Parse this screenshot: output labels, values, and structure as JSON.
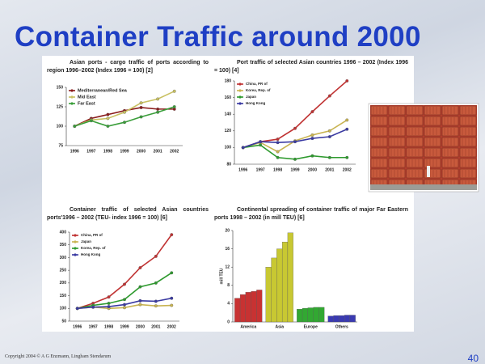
{
  "slide_title": "Container Traffic around 2000",
  "footer": "Copyright 2004 © A G Enzmann, Lingham Stendarum",
  "page_number": "40",
  "chart_data": [
    {
      "type": "line",
      "title": "Asian ports - cargo traffic of ports according to region 1996–2002 (Index 1996 = 100) [2]",
      "categories": [
        "1996",
        "1997",
        "1998",
        "1999",
        "2000",
        "2001",
        "2002"
      ],
      "ylim": [
        75,
        150
      ],
      "yticks": [
        75,
        100,
        125,
        150
      ],
      "grid": false,
      "legend": "upper left",
      "series": [
        {
          "name": "Mediterranean/Red Sea",
          "color": "#8b1c1c",
          "values": [
            100,
            110,
            115,
            120,
            124,
            122,
            122
          ]
        },
        {
          "name": "Mid East",
          "color": "#c9c162",
          "values": [
            100,
            108,
            110,
            118,
            130,
            135,
            145
          ]
        },
        {
          "name": "Far East",
          "color": "#3a9e3a",
          "values": [
            100,
            107,
            100,
            105,
            112,
            118,
            125
          ]
        }
      ]
    },
    {
      "type": "line",
      "title": "Port traffic of selected Asian countries 1996 – 2002 (Index 1996 = 100) [4]",
      "categories": [
        "1996",
        "1997",
        "1998",
        "1999",
        "2000",
        "2001",
        "2002"
      ],
      "ylim": [
        80,
        180
      ],
      "yticks": [
        80,
        100,
        120,
        140,
        160,
        180
      ],
      "grid": false,
      "legend": "upper left",
      "series": [
        {
          "name": "China, PR of",
          "color": "#c03232",
          "values": [
            100,
            107,
            110,
            123,
            143,
            162,
            180
          ]
        },
        {
          "name": "Korea, Rep. of",
          "color": "#c9b452",
          "values": [
            100,
            106,
            95,
            108,
            115,
            120,
            133
          ]
        },
        {
          "name": "Japan",
          "color": "#2e9a2e",
          "values": [
            100,
            103,
            88,
            86,
            90,
            88,
            88
          ]
        },
        {
          "name": "Hong Kong",
          "color": "#3a3aa2",
          "values": [
            100,
            107,
            106,
            107,
            111,
            113,
            122
          ]
        }
      ]
    },
    {
      "type": "line",
      "title": "Container traffic of selected Asian countries ports'1996 – 2002 (TEU- index 1996 = 100) [6]",
      "categories": [
        "1996",
        "1997",
        "1998",
        "1999",
        "2000",
        "2001",
        "2002"
      ],
      "ylim": [
        50,
        400
      ],
      "yticks": [
        50,
        100,
        150,
        200,
        250,
        300,
        350,
        400
      ],
      "grid": false,
      "legend": "upper left",
      "series": [
        {
          "name": "China, PR of",
          "color": "#c03232",
          "values": [
            100,
            120,
            145,
            195,
            260,
            305,
            390
          ]
        },
        {
          "name": "Japan",
          "color": "#c9b452",
          "values": [
            100,
            105,
            100,
            103,
            115,
            110,
            112
          ]
        },
        {
          "name": "Korea, Rep. of",
          "color": "#2e9a2e",
          "values": [
            100,
            112,
            120,
            135,
            185,
            200,
            240
          ]
        },
        {
          "name": "Hong Kong",
          "color": "#3a3aa2",
          "values": [
            100,
            105,
            107,
            115,
            130,
            128,
            140
          ]
        }
      ]
    },
    {
      "type": "bar",
      "title": "Continental spreading of container traffic of major Far Eastern ports 1998 – 2002 (in mill TEU) [6]",
      "ylabel": "mill TEU",
      "categories": [
        "America",
        "Asia",
        "Europe",
        "Others"
      ],
      "colors": [
        "#c83232",
        "#c8c832",
        "#32a832",
        "#3a3ab2"
      ],
      "values": [
        [
          5.2,
          6,
          6.5,
          6.7,
          7
        ],
        [
          12,
          14,
          16,
          17.5,
          19.5
        ],
        [
          2.8,
          3,
          3.1,
          3.2,
          3.2
        ],
        [
          1.3,
          1.4,
          1.4,
          1.5,
          1.5
        ]
      ],
      "ylim": [
        0,
        20
      ],
      "yticks": [
        0,
        4,
        8,
        12,
        16,
        20
      ],
      "grid": false
    }
  ]
}
